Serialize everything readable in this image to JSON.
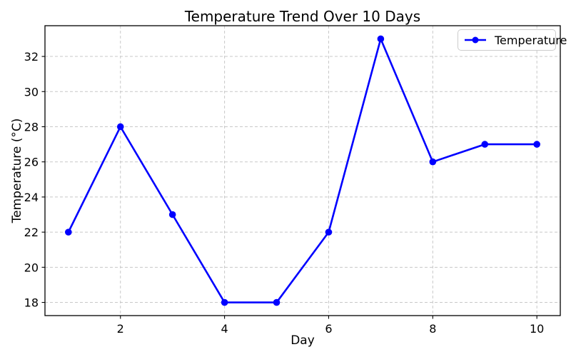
{
  "figure": {
    "background": "#ffffff"
  },
  "chart_data": {
    "type": "line",
    "title": "Temperature Trend Over 10 Days",
    "xlabel": "Day",
    "ylabel": "Temperature (°C)",
    "x": [
      1,
      2,
      3,
      4,
      5,
      6,
      7,
      8,
      9,
      10
    ],
    "series": [
      {
        "name": "Temperature",
        "color": "#0000ff",
        "values": [
          22,
          28,
          23,
          18,
          18,
          22,
          33,
          26,
          27,
          27
        ],
        "marker": "circle",
        "line_width": 2.6,
        "marker_radius": 4.8
      }
    ],
    "xticks": [
      2,
      4,
      6,
      8,
      10
    ],
    "yticks": [
      18,
      20,
      22,
      24,
      26,
      28,
      30,
      32
    ],
    "xlim": [
      0.55,
      10.45
    ],
    "ylim": [
      17.25,
      33.75
    ],
    "grid": true,
    "grid_on": "both",
    "grid_line_style": "dashed",
    "colors": {
      "grid": "#c8c8c8",
      "spine": "#000000",
      "tick_label": "#000000"
    },
    "legend": {
      "visible": true,
      "position": "upper-right"
    }
  }
}
